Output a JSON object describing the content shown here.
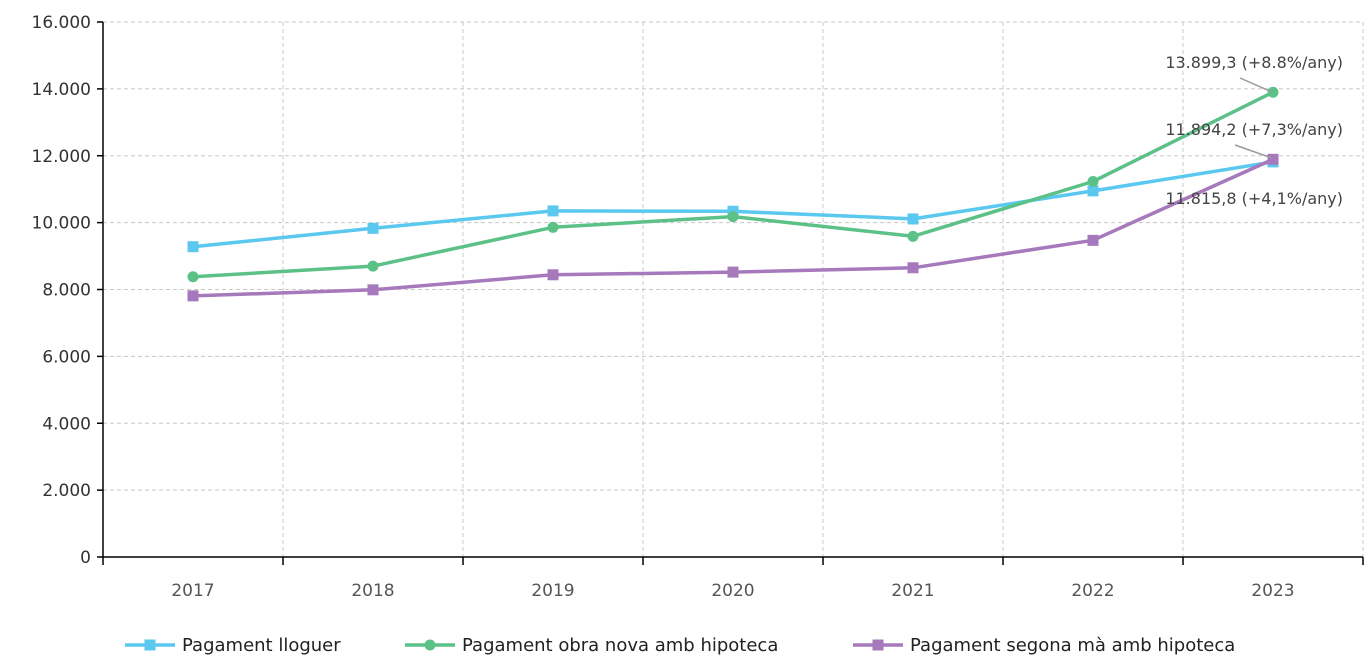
{
  "chart_data": {
    "type": "line",
    "title": "",
    "xlabel": "",
    "ylabel": "",
    "categories": [
      "2017",
      "2018",
      "2019",
      "2020",
      "2021",
      "2022",
      "2023"
    ],
    "ylim": [
      0,
      16000
    ],
    "yticks": [
      0,
      2000,
      4000,
      6000,
      8000,
      10000,
      12000,
      14000,
      16000
    ],
    "ytick_labels": [
      "0",
      "2.000",
      "4.000",
      "6.000",
      "8.000",
      "10.000",
      "12.000",
      "14.000",
      "16.000"
    ],
    "grid": true,
    "legend_position": "bottom",
    "series": [
      {
        "name": "Pagament lloguer",
        "color": "#5BC8F0",
        "marker": "square",
        "values": [
          9280,
          9830,
          10350,
          10340,
          10110,
          10950,
          11815.8
        ]
      },
      {
        "name": "Pagament obra nova amb hipoteca",
        "color": "#5CC187",
        "marker": "circle",
        "values": [
          8380,
          8700,
          9860,
          10180,
          9590,
          11230,
          13899.3
        ]
      },
      {
        "name": "Pagament segona mà amb hipoteca",
        "color": "#A678BC",
        "marker": "square",
        "values": [
          7810,
          7990,
          8440,
          8520,
          8650,
          9470,
          11894.2
        ]
      }
    ],
    "annotations": [
      {
        "text": "13.899,3 (+8.8%/any)",
        "series": "Pagament obra nova amb hipoteca",
        "x": "2023",
        "y": 13899.3
      },
      {
        "text": "11.894,2 (+7,3%/any)",
        "series": "Pagament segona mà amb hipoteca",
        "x": "2023",
        "y": 11894.2
      },
      {
        "text": "11.815,8 (+4,1%/any)",
        "series": "Pagament lloguer",
        "x": "2023",
        "y": 11815.8
      }
    ]
  }
}
